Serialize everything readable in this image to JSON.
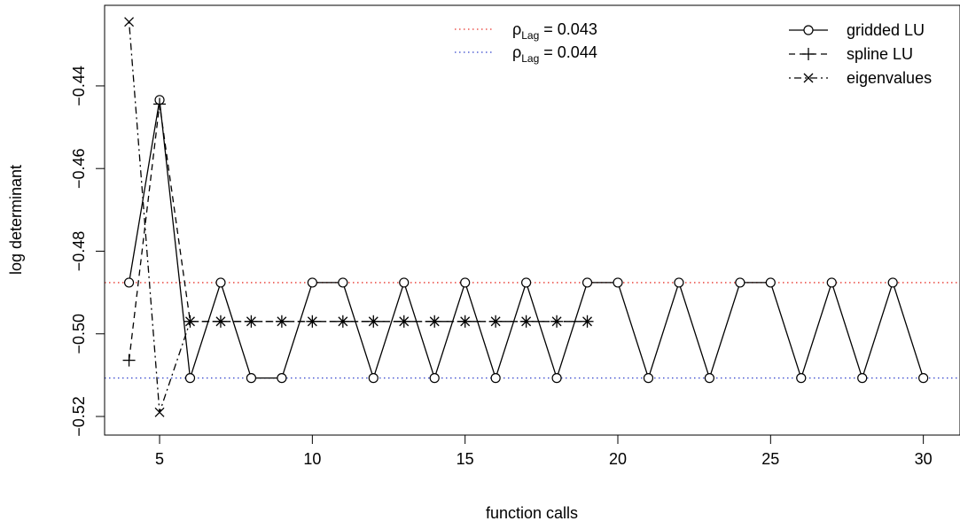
{
  "chart_data": {
    "type": "line",
    "xlabel": "function calls",
    "ylabel": "log determinant",
    "xlim": [
      3.2,
      31.2
    ],
    "ylim": [
      -0.5245,
      -0.4205
    ],
    "x_ticks": [
      5,
      10,
      15,
      20,
      25,
      30
    ],
    "y_ticks": [
      -0.44,
      -0.46,
      -0.48,
      -0.5,
      -0.52
    ],
    "x_tick_labels": [
      "5",
      "10",
      "15",
      "20",
      "25",
      "30"
    ],
    "y_tick_labels": [
      "−0.44",
      "−0.46",
      "−0.48",
      "−0.50",
      "−0.52"
    ],
    "series": [
      {
        "name": "gridded LU",
        "style": "solid",
        "marker": "circle",
        "x": [
          4,
          5,
          6,
          7,
          8,
          9,
          10,
          11,
          12,
          13,
          14,
          15,
          16,
          17,
          18,
          19,
          20,
          21,
          22,
          23,
          24,
          25,
          26,
          27,
          28,
          29,
          30
        ],
        "y": [
          -0.4876,
          -0.4434,
          -0.5107,
          -0.4876,
          -0.5107,
          -0.5107,
          -0.4876,
          -0.4876,
          -0.5107,
          -0.4876,
          -0.5107,
          -0.4876,
          -0.5107,
          -0.4876,
          -0.5107,
          -0.4876,
          -0.4876,
          -0.5107,
          -0.4876,
          -0.5107,
          -0.4876,
          -0.4876,
          -0.5107,
          -0.4876,
          -0.5107,
          -0.4876,
          -0.5107
        ]
      },
      {
        "name": "spline LU",
        "style": "dashed",
        "marker": "plus",
        "x": [
          4,
          5,
          6,
          7,
          8,
          9,
          10,
          11,
          12,
          13,
          14,
          15,
          16,
          17,
          18,
          19
        ],
        "y": [
          -0.5064,
          -0.4444,
          -0.497,
          -0.497,
          -0.497,
          -0.497,
          -0.497,
          -0.497,
          -0.497,
          -0.497,
          -0.497,
          -0.497,
          -0.497,
          -0.497,
          -0.497,
          -0.497
        ]
      },
      {
        "name": "eigenvalues",
        "style": "dotdash",
        "marker": "cross",
        "x": [
          4,
          5,
          6,
          7,
          8,
          9,
          10,
          11,
          12,
          13,
          14,
          15,
          16,
          17,
          18,
          19
        ],
        "y": [
          -0.4245,
          -0.519,
          -0.497,
          -0.497,
          -0.497,
          -0.497,
          -0.497,
          -0.497,
          -0.497,
          -0.497,
          -0.497,
          -0.497,
          -0.497,
          -0.497,
          -0.497,
          -0.497
        ]
      }
    ],
    "reference_lines": [
      {
        "y": -0.4876,
        "color": "#e8342c",
        "style": "dotted",
        "symbol": "ρ",
        "subscript": "Lag",
        "value_text": " = 0.043"
      },
      {
        "y": -0.5107,
        "color": "#3344cc",
        "style": "dotted",
        "symbol": "ρ",
        "subscript": "Lag",
        "value_text": " = 0.044"
      }
    ],
    "legend": "top-right",
    "grid": false
  }
}
